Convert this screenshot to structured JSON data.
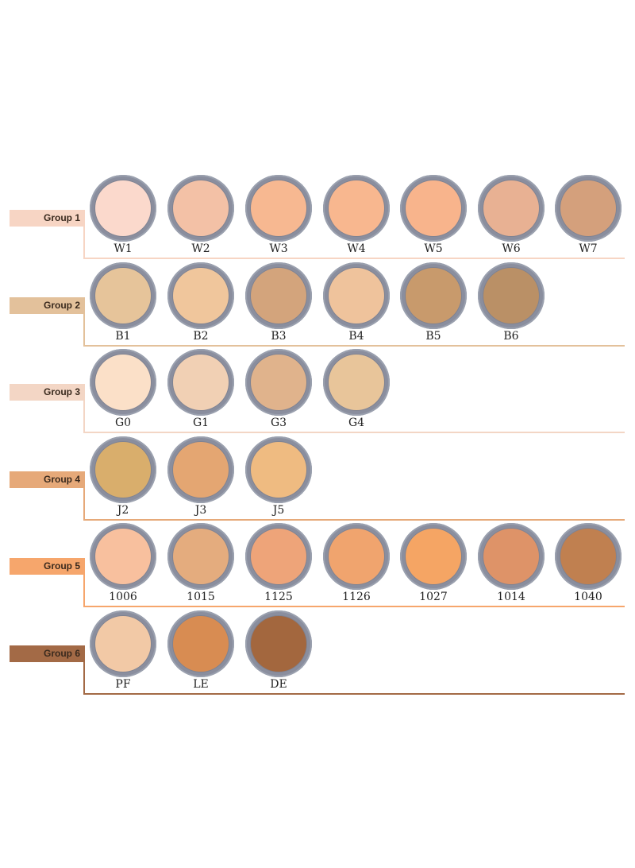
{
  "groups": [
    {
      "label": "Group 1",
      "color": "#f7d5c4",
      "shades": [
        {
          "code": "W1",
          "color": "#fbd9cc"
        },
        {
          "code": "W2",
          "color": "#f3c1a6"
        },
        {
          "code": "W3",
          "color": "#f7b891"
        },
        {
          "code": "W4",
          "color": "#f8b78f"
        },
        {
          "code": "W5",
          "color": "#f8b48c"
        },
        {
          "code": "W6",
          "color": "#e8b193"
        },
        {
          "code": "W7",
          "color": "#d4a07c"
        }
      ]
    },
    {
      "label": "Group 2",
      "color": "#e3c19b",
      "shades": [
        {
          "code": "B1",
          "color": "#e6c49a"
        },
        {
          "code": "B2",
          "color": "#f0c69c"
        },
        {
          "code": "B3",
          "color": "#d3a47c"
        },
        {
          "code": "B4",
          "color": "#efc39c"
        },
        {
          "code": "B5",
          "color": "#c89a6c"
        },
        {
          "code": "B6",
          "color": "#ba9066"
        }
      ]
    },
    {
      "label": "Group 3",
      "color": "#f3d6c5",
      "shades": [
        {
          "code": "G0",
          "color": "#fbe0c8"
        },
        {
          "code": "G1",
          "color": "#f1d0b4"
        },
        {
          "code": "G3",
          "color": "#e0b38c"
        },
        {
          "code": "G4",
          "color": "#e8c59a"
        }
      ]
    },
    {
      "label": "Group 4",
      "color": "#e6a979",
      "shades": [
        {
          "code": "J2",
          "color": "#d9ae6c"
        },
        {
          "code": "J3",
          "color": "#e4a672"
        },
        {
          "code": "J5",
          "color": "#efbb81"
        }
      ]
    },
    {
      "label": "Group 5",
      "color": "#f6a66c",
      "shades": [
        {
          "code": "1006",
          "color": "#f8c09e"
        },
        {
          "code": "1015",
          "color": "#e4ac7e"
        },
        {
          "code": "1125",
          "color": "#eea479"
        },
        {
          "code": "1126",
          "color": "#f0a46e"
        },
        {
          "code": "1027",
          "color": "#f5a564"
        },
        {
          "code": "1014",
          "color": "#de9368"
        },
        {
          "code": "1040",
          "color": "#c08050"
        }
      ]
    },
    {
      "label": "Group 6",
      "color": "#a36a46",
      "shades": [
        {
          "code": "PF",
          "color": "#f2c9a6"
        },
        {
          "code": "LE",
          "color": "#d88c52"
        },
        {
          "code": "DE",
          "color": "#a3673e"
        }
      ]
    }
  ]
}
